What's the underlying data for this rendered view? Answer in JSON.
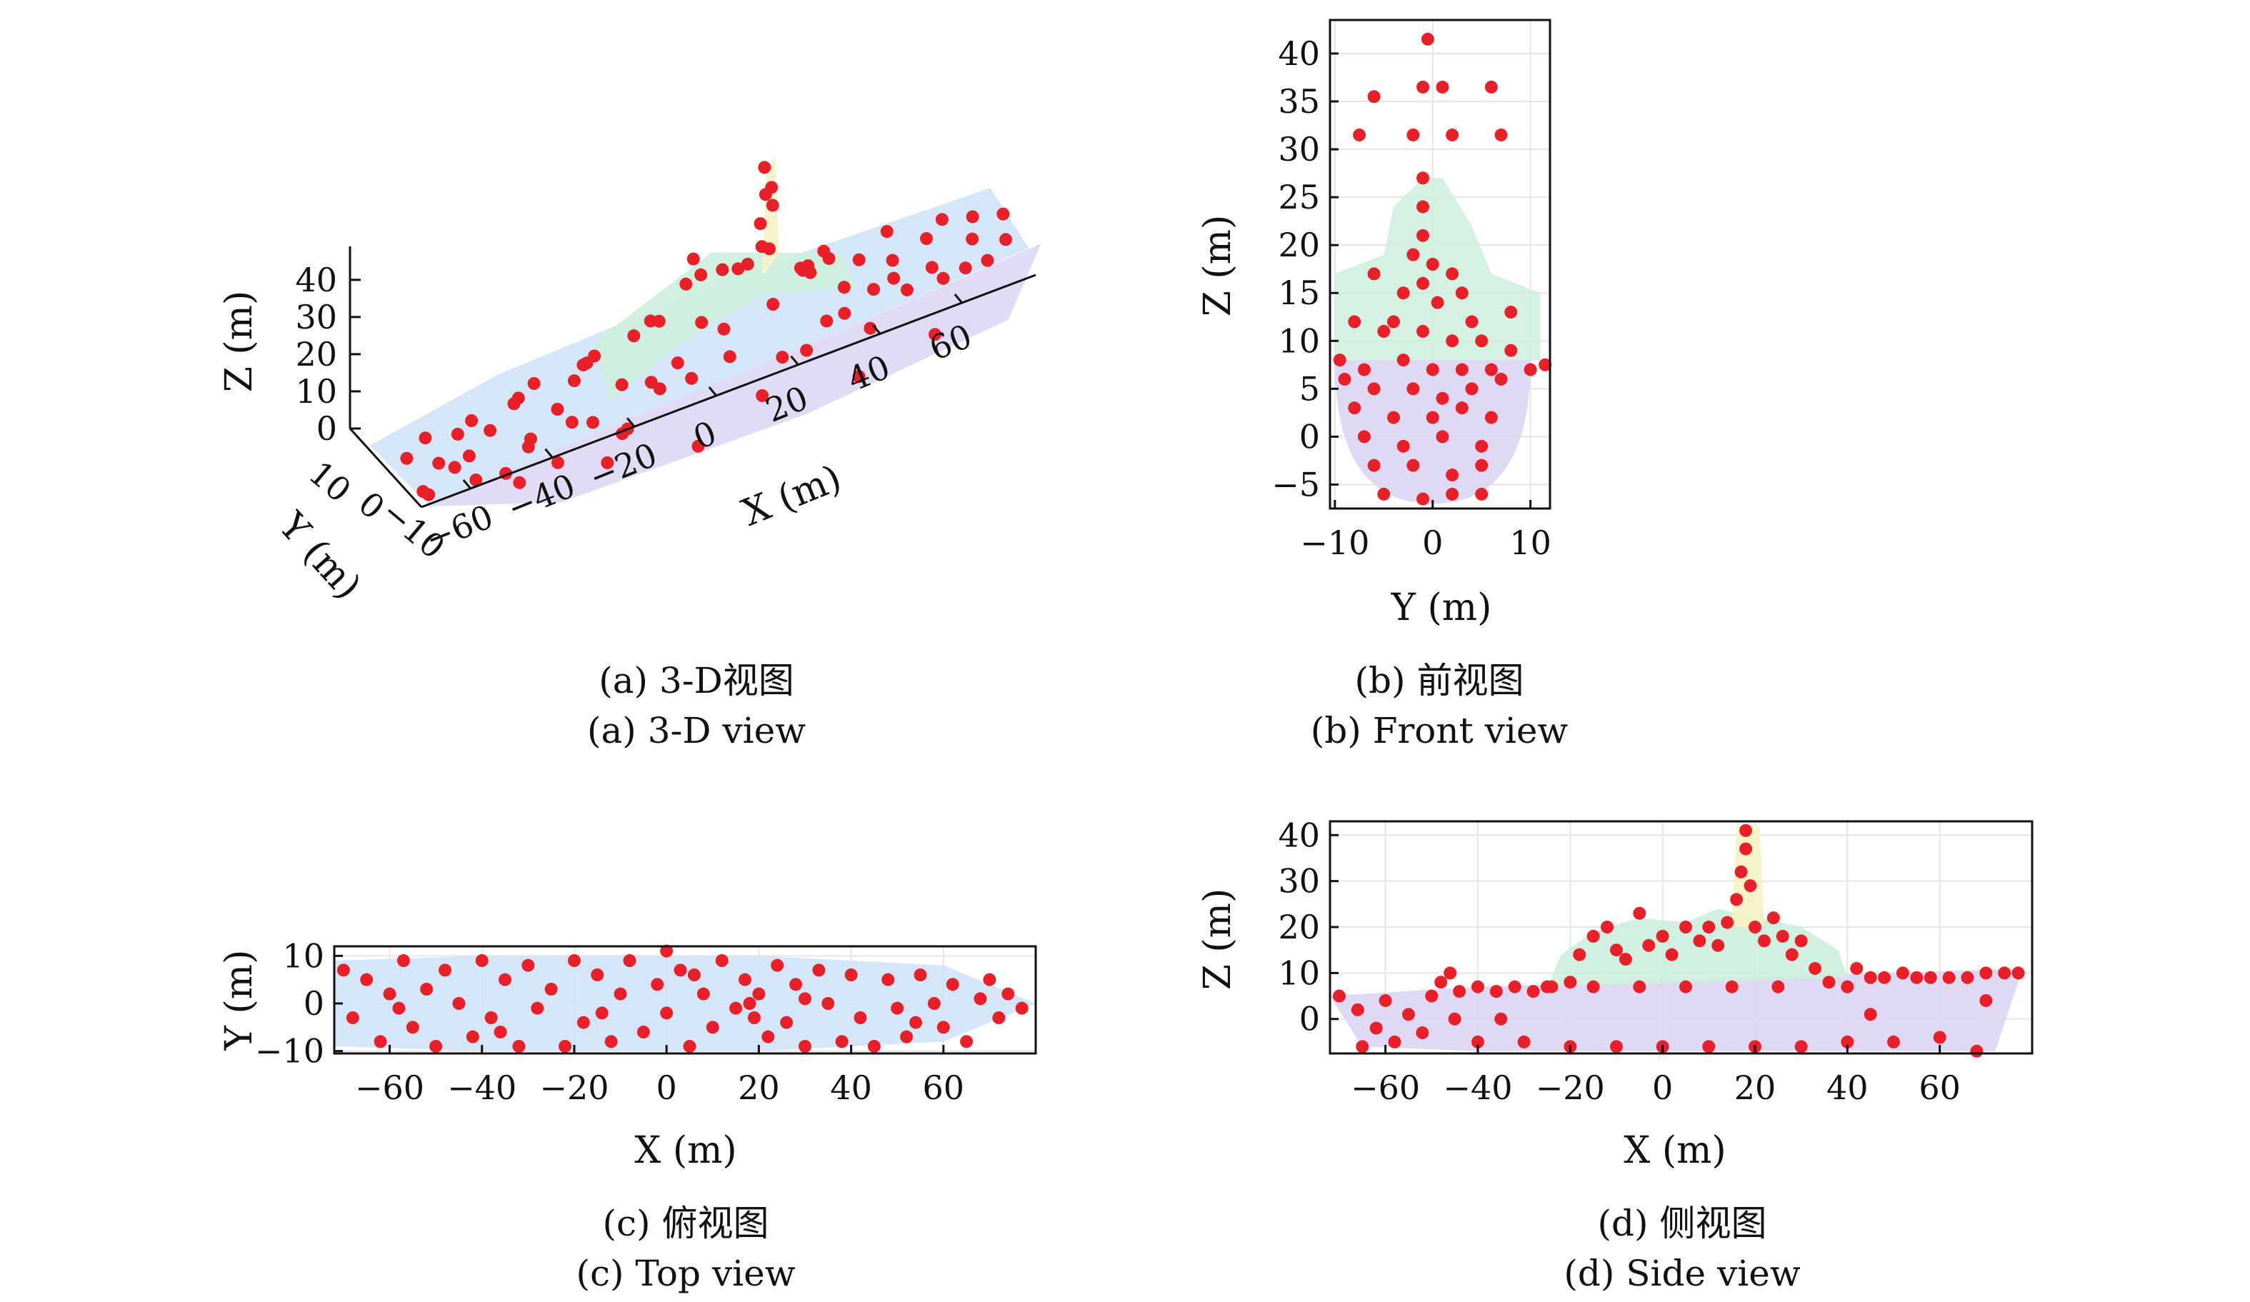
{
  "captions": {
    "a_cn": "(a) 3-D视图",
    "a_en": "(a) 3-D view",
    "b_cn": "(b) 前视图",
    "b_en": "(b) Front view",
    "c_cn": "(c) 俯视图",
    "c_en": "(c) Top view",
    "d_cn": "(d) 侧视图",
    "d_en": "(d) Side view"
  },
  "colors": {
    "points": "#e8202a",
    "hull_light": "#cfe3f7",
    "hull_violet": "#d9d2f2",
    "superstructure": "#cdeedd",
    "mast": "#f6f1c6"
  },
  "chart_data": [
    {
      "id": "a",
      "type": "scatter",
      "projection": "3d",
      "xlabel": "X (m)",
      "ylabel": "Y (m)",
      "zlabel": "Z (m)",
      "xticks": [
        -60,
        -40,
        -20,
        0,
        20,
        40,
        60
      ],
      "yticks": [
        10,
        0,
        -10
      ],
      "zticks": [
        0,
        10,
        20,
        30,
        40
      ],
      "xlim": [
        -72,
        78
      ],
      "ylim": [
        -12,
        12
      ],
      "zlim": [
        -7,
        42
      ],
      "hull_outline_xz": [
        [
          -72,
          4
        ],
        [
          -60,
          7
        ],
        [
          -40,
          8
        ],
        [
          -20,
          8
        ],
        [
          0,
          10
        ],
        [
          10,
          20
        ],
        [
          20,
          20
        ],
        [
          40,
          11
        ],
        [
          60,
          11
        ],
        [
          78,
          11
        ],
        [
          78,
          -3
        ],
        [
          60,
          -5
        ],
        [
          40,
          -6
        ],
        [
          0,
          -6
        ],
        [
          -40,
          -6
        ],
        [
          -60,
          -4
        ],
        [
          -72,
          0
        ]
      ],
      "points_xyz": [
        [
          -70,
          5,
          4
        ],
        [
          -66,
          -6,
          2
        ],
        [
          -64,
          2,
          6
        ],
        [
          -60,
          -8,
          3
        ],
        [
          -58,
          4,
          7
        ],
        [
          -55,
          -4,
          5
        ],
        [
          -52,
          8,
          4
        ],
        [
          -50,
          0,
          7
        ],
        [
          -48,
          -9,
          2
        ],
        [
          -45,
          6,
          6
        ],
        [
          -42,
          -3,
          8
        ],
        [
          -40,
          9,
          3
        ],
        [
          -38,
          -7,
          5
        ],
        [
          -35,
          2,
          8
        ],
        [
          -32,
          -10,
          4
        ],
        [
          -30,
          7,
          7
        ],
        [
          -28,
          -2,
          9
        ],
        [
          -25,
          10,
          5
        ],
        [
          -22,
          -6,
          8
        ],
        [
          -20,
          3,
          9
        ],
        [
          -18,
          -9,
          6
        ],
        [
          -15,
          6,
          10
        ],
        [
          -12,
          -4,
          12
        ],
        [
          -10,
          8,
          14
        ],
        [
          -8,
          -1,
          16
        ],
        [
          -5,
          -8,
          10
        ],
        [
          -2,
          5,
          18
        ],
        [
          0,
          -3,
          20
        ],
        [
          2,
          9,
          12
        ],
        [
          4,
          -6,
          22
        ],
        [
          6,
          1,
          24
        ],
        [
          8,
          -9,
          15
        ],
        [
          10,
          4,
          26
        ],
        [
          12,
          -2,
          20
        ],
        [
          14,
          7,
          18
        ],
        [
          16,
          0,
          30
        ],
        [
          18,
          -1,
          35
        ],
        [
          18,
          1,
          38
        ],
        [
          17,
          0,
          42
        ],
        [
          19,
          0,
          33
        ],
        [
          20,
          -5,
          20
        ],
        [
          22,
          6,
          22
        ],
        [
          24,
          -8,
          16
        ],
        [
          26,
          3,
          18
        ],
        [
          28,
          -3,
          14
        ],
        [
          30,
          9,
          12
        ],
        [
          32,
          -6,
          11
        ],
        [
          35,
          2,
          11
        ],
        [
          38,
          -9,
          10
        ],
        [
          40,
          5,
          11
        ],
        [
          43,
          -4,
          10
        ],
        [
          46,
          8,
          11
        ],
        [
          49,
          -1,
          10
        ],
        [
          52,
          -7,
          11
        ],
        [
          55,
          4,
          10
        ],
        [
          58,
          -2,
          11
        ],
        [
          61,
          7,
          10
        ],
        [
          64,
          -5,
          11
        ],
        [
          67,
          1,
          10
        ],
        [
          70,
          -3,
          11
        ],
        [
          73,
          4,
          10
        ],
        [
          76,
          -1,
          11
        ],
        [
          -65,
          0,
          -2
        ],
        [
          -55,
          -5,
          -3
        ],
        [
          -45,
          3,
          -4
        ],
        [
          -35,
          -7,
          -5
        ],
        [
          -25,
          5,
          -5
        ],
        [
          -15,
          -2,
          -6
        ],
        [
          -5,
          8,
          -6
        ],
        [
          5,
          -8,
          -6
        ],
        [
          15,
          2,
          -6
        ],
        [
          25,
          -5,
          -6
        ],
        [
          35,
          7,
          -5
        ],
        [
          45,
          -3,
          -5
        ],
        [
          55,
          5,
          -4
        ],
        [
          65,
          -6,
          -3
        ],
        [
          -30,
          0,
          2
        ],
        [
          -10,
          2,
          4
        ],
        [
          10,
          -4,
          6
        ],
        [
          30,
          3,
          6
        ],
        [
          50,
          -2,
          5
        ],
        [
          70,
          2,
          5
        ],
        [
          -60,
          9,
          6
        ],
        [
          -20,
          -10,
          4
        ],
        [
          20,
          10,
          8
        ],
        [
          40,
          -10,
          7
        ]
      ]
    },
    {
      "id": "b",
      "type": "scatter",
      "xlabel": "Y (m)",
      "ylabel": "Z (m)",
      "xticks": [
        -10,
        0,
        10
      ],
      "yticks": [
        -5,
        0,
        5,
        10,
        15,
        20,
        25,
        30,
        35,
        40
      ],
      "xlim": [
        -10.5,
        12
      ],
      "ylim": [
        -7.5,
        43.5
      ],
      "points": [
        [
          -0.5,
          41.5
        ],
        [
          -6,
          35.5
        ],
        [
          -1,
          36.5
        ],
        [
          1,
          36.5
        ],
        [
          6,
          36.5
        ],
        [
          -7.5,
          31.5
        ],
        [
          -2,
          31.5
        ],
        [
          2,
          31.5
        ],
        [
          7,
          31.5
        ],
        [
          -1,
          27
        ],
        [
          -1,
          24
        ],
        [
          -1,
          21
        ],
        [
          0,
          18
        ],
        [
          -2,
          19
        ],
        [
          -1,
          16
        ],
        [
          0.5,
          14
        ],
        [
          -3,
          15
        ],
        [
          3,
          15
        ],
        [
          -8,
          12
        ],
        [
          -5,
          11
        ],
        [
          -1,
          11
        ],
        [
          2,
          10
        ],
        [
          5,
          10
        ],
        [
          8,
          9
        ],
        [
          -9.5,
          8
        ],
        [
          -7,
          7
        ],
        [
          -3,
          8
        ],
        [
          0,
          7
        ],
        [
          3,
          7
        ],
        [
          6,
          7
        ],
        [
          10,
          7
        ],
        [
          11.5,
          7.5
        ],
        [
          -9,
          6
        ],
        [
          -6,
          5
        ],
        [
          -2,
          5
        ],
        [
          1,
          4
        ],
        [
          4,
          5
        ],
        [
          7,
          6
        ],
        [
          -8,
          3
        ],
        [
          -4,
          2
        ],
        [
          0,
          2
        ],
        [
          3,
          3
        ],
        [
          6,
          2
        ],
        [
          -7,
          0
        ],
        [
          -3,
          -1
        ],
        [
          1,
          0
        ],
        [
          5,
          -1
        ],
        [
          -6,
          -3
        ],
        [
          -2,
          -3
        ],
        [
          2,
          -4
        ],
        [
          5,
          -3
        ],
        [
          -5,
          -6
        ],
        [
          -1,
          -6.5
        ],
        [
          2,
          -6
        ],
        [
          5,
          -6
        ],
        [
          -4,
          12
        ],
        [
          4,
          12
        ],
        [
          -6,
          17
        ],
        [
          2,
          17
        ],
        [
          8,
          13
        ]
      ]
    },
    {
      "id": "c",
      "type": "scatter",
      "xlabel": "X (m)",
      "ylabel": "Y (m)",
      "xticks": [
        -60,
        -40,
        -20,
        0,
        20,
        40,
        60
      ],
      "yticks": [
        -10,
        0,
        10
      ],
      "xlim": [
        -72,
        80
      ],
      "ylim": [
        -10.5,
        12
      ],
      "points": [
        [
          -70,
          7
        ],
        [
          -68,
          -3
        ],
        [
          -65,
          5
        ],
        [
          -62,
          -8
        ],
        [
          -60,
          2
        ],
        [
          -57,
          9
        ],
        [
          -55,
          -5
        ],
        [
          -52,
          3
        ],
        [
          -50,
          -9
        ],
        [
          -48,
          7
        ],
        [
          -45,
          0
        ],
        [
          -42,
          -7
        ],
        [
          -40,
          9
        ],
        [
          -38,
          -3
        ],
        [
          -35,
          5
        ],
        [
          -32,
          -9
        ],
        [
          -30,
          8
        ],
        [
          -28,
          -1
        ],
        [
          -25,
          3
        ],
        [
          -22,
          -9
        ],
        [
          -20,
          9
        ],
        [
          -18,
          -4
        ],
        [
          -15,
          6
        ],
        [
          -12,
          -8
        ],
        [
          -10,
          2
        ],
        [
          -8,
          9
        ],
        [
          -5,
          -6
        ],
        [
          -2,
          4
        ],
        [
          0,
          -2
        ],
        [
          0,
          11
        ],
        [
          3,
          7
        ],
        [
          5,
          -9
        ],
        [
          8,
          2
        ],
        [
          10,
          -5
        ],
        [
          12,
          9
        ],
        [
          15,
          -1
        ],
        [
          17,
          5
        ],
        [
          18,
          0
        ],
        [
          19,
          -3
        ],
        [
          20,
          2
        ],
        [
          22,
          -7
        ],
        [
          24,
          8
        ],
        [
          26,
          -4
        ],
        [
          28,
          4
        ],
        [
          30,
          -9
        ],
        [
          33,
          7
        ],
        [
          35,
          0
        ],
        [
          38,
          -8
        ],
        [
          40,
          6
        ],
        [
          42,
          -3
        ],
        [
          45,
          -9
        ],
        [
          48,
          5
        ],
        [
          50,
          -1
        ],
        [
          52,
          -7
        ],
        [
          55,
          6
        ],
        [
          58,
          0
        ],
        [
          60,
          -5
        ],
        [
          62,
          4
        ],
        [
          65,
          -8
        ],
        [
          68,
          1
        ],
        [
          70,
          5
        ],
        [
          72,
          -3
        ],
        [
          74,
          2
        ],
        [
          77,
          -1
        ],
        [
          -58,
          -1
        ],
        [
          -36,
          -6
        ],
        [
          -14,
          -2
        ],
        [
          6,
          6
        ],
        [
          30,
          1
        ],
        [
          54,
          -4
        ]
      ]
    },
    {
      "id": "d",
      "type": "scatter",
      "xlabel": "X (m)",
      "ylabel": "Z (m)",
      "xticks": [
        -60,
        -40,
        -20,
        0,
        20,
        40,
        60
      ],
      "yticks": [
        0,
        10,
        20,
        30,
        40
      ],
      "xlim": [
        -72,
        80
      ],
      "ylim": [
        -7.5,
        43
      ],
      "points": [
        [
          -70,
          5
        ],
        [
          -66,
          2
        ],
        [
          -62,
          -2
        ],
        [
          -60,
          4
        ],
        [
          -58,
          -5
        ],
        [
          -55,
          1
        ],
        [
          -52,
          -3
        ],
        [
          -50,
          5
        ],
        [
          -48,
          8
        ],
        [
          -46,
          10
        ],
        [
          -44,
          6
        ],
        [
          -40,
          7
        ],
        [
          -36,
          6
        ],
        [
          -32,
          7
        ],
        [
          -28,
          6
        ],
        [
          -24,
          7
        ],
        [
          -20,
          8
        ],
        [
          -18,
          14
        ],
        [
          -15,
          18
        ],
        [
          -12,
          20
        ],
        [
          -10,
          15
        ],
        [
          -8,
          13
        ],
        [
          -5,
          23
        ],
        [
          -3,
          16
        ],
        [
          0,
          18
        ],
        [
          2,
          14
        ],
        [
          5,
          20
        ],
        [
          8,
          17
        ],
        [
          10,
          20
        ],
        [
          12,
          16
        ],
        [
          14,
          21
        ],
        [
          16,
          26
        ],
        [
          17,
          32
        ],
        [
          18,
          37
        ],
        [
          18,
          41
        ],
        [
          19,
          29
        ],
        [
          20,
          20
        ],
        [
          22,
          17
        ],
        [
          24,
          22
        ],
        [
          26,
          18
        ],
        [
          28,
          14
        ],
        [
          30,
          17
        ],
        [
          33,
          11
        ],
        [
          36,
          8
        ],
        [
          40,
          7
        ],
        [
          42,
          11
        ],
        [
          45,
          9
        ],
        [
          48,
          9
        ],
        [
          52,
          10
        ],
        [
          55,
          9
        ],
        [
          58,
          9
        ],
        [
          62,
          9
        ],
        [
          66,
          9
        ],
        [
          70,
          10
        ],
        [
          74,
          10
        ],
        [
          77,
          10
        ],
        [
          -40,
          -5
        ],
        [
          -30,
          -5
        ],
        [
          -20,
          -6
        ],
        [
          -10,
          -6
        ],
        [
          0,
          -6
        ],
        [
          10,
          -6
        ],
        [
          20,
          -6
        ],
        [
          30,
          -6
        ],
        [
          40,
          -5
        ],
        [
          50,
          -5
        ],
        [
          60,
          -4
        ],
        [
          68,
          -7
        ],
        [
          -45,
          0
        ],
        [
          -35,
          0
        ],
        [
          -25,
          7
        ],
        [
          -15,
          7
        ],
        [
          -5,
          7
        ],
        [
          5,
          7
        ],
        [
          15,
          7
        ],
        [
          25,
          7
        ],
        [
          45,
          1
        ],
        [
          -65,
          -6
        ],
        [
          70,
          4
        ]
      ]
    }
  ]
}
